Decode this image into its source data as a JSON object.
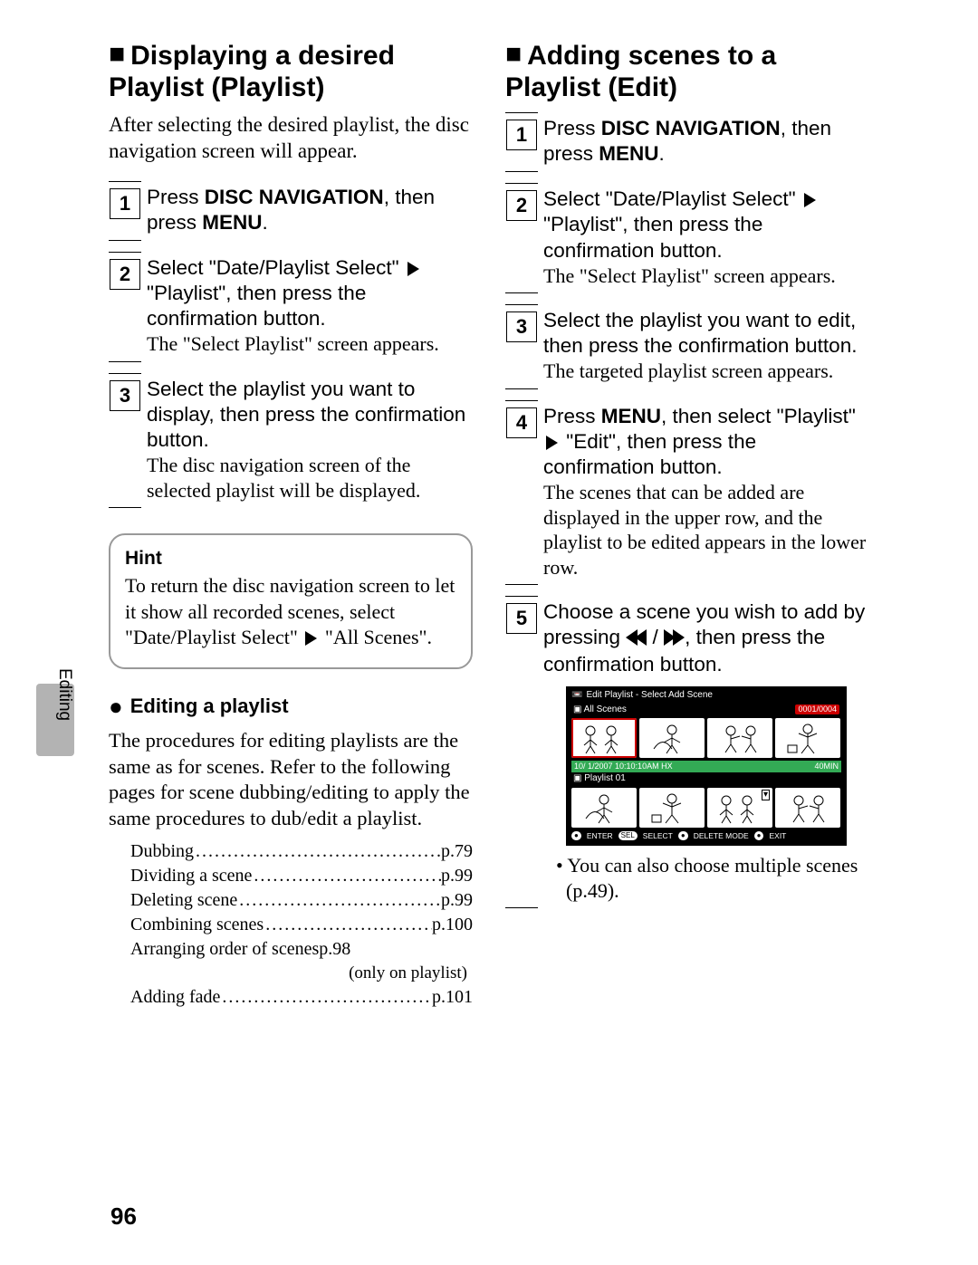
{
  "page_number": "96",
  "side_label": "Editing",
  "left": {
    "heading": "Displaying a desired Playlist (Playlist)",
    "intro": "After selecting the desired playlist, the disc navigation screen will appear.",
    "steps": [
      {
        "num": "1",
        "lines": [
          {
            "t": "Press ",
            "b": false,
            "sans": true
          },
          {
            "t": "DISC NAVIGATION",
            "b": true,
            "sans": true
          },
          {
            "t": ", then press ",
            "b": false,
            "sans": true
          },
          {
            "t": "MENU",
            "b": true,
            "sans": true
          },
          {
            "t": ".",
            "b": false,
            "sans": true
          }
        ]
      },
      {
        "num": "2",
        "lines": [
          {
            "t": "Select \"Date/Playlist Select\" ",
            "sans": true
          },
          {
            "tri": true
          },
          {
            "t": " \"Playlist\", then press the confirmation button.",
            "sans": true
          },
          {
            "br": true
          },
          {
            "t": "The \"Select Playlist\" screen appears.",
            "serif": true
          }
        ]
      },
      {
        "num": "3",
        "lines": [
          {
            "t": "Select the playlist you want to display, then press the confirmation button.",
            "sans": true
          },
          {
            "br": true
          },
          {
            "t": "The disc navigation screen of the selected playlist will be displayed.",
            "serif": true
          }
        ]
      }
    ],
    "hint_title": "Hint",
    "hint_body_a": "To return the disc navigation screen to let it show all recorded scenes, select \"Date/Playlist Select\" ",
    "hint_body_b": " \"All Scenes\".",
    "sub_heading": "Editing a playlist",
    "sub_body": "The procedures for editing playlists are the same as for scenes. Refer to the following pages for scene dubbing/editing to apply the same procedures to dub/edit a playlist.",
    "refs": [
      {
        "label": "Dubbing",
        "page": "p.79"
      },
      {
        "label": "Dividing a scene",
        "page": "p.99"
      },
      {
        "label": "Deleting scene",
        "page": "p.99"
      },
      {
        "label": "Combining scenes",
        "page": "p.100"
      },
      {
        "label": "Arranging order of scenes",
        "page": "p.98",
        "nodots": true
      },
      {
        "note": "(only on playlist)"
      },
      {
        "label": "Adding fade",
        "page": "p.101"
      }
    ]
  },
  "right": {
    "heading": "Adding scenes to a Playlist (Edit)",
    "steps": [
      {
        "num": "1",
        "lines": [
          {
            "t": "Press ",
            "sans": true
          },
          {
            "t": "DISC NAVIGATION",
            "b": true,
            "sans": true
          },
          {
            "t": ", then press ",
            "sans": true
          },
          {
            "t": "MENU",
            "b": true,
            "sans": true
          },
          {
            "t": ".",
            "sans": true
          }
        ]
      },
      {
        "num": "2",
        "lines": [
          {
            "t": "Select \"Date/Playlist Select\" ",
            "sans": true
          },
          {
            "tri": true
          },
          {
            "t": " \"Playlist\", then press the confirmation button.",
            "sans": true
          },
          {
            "br": true
          },
          {
            "t": "The \"Select Playlist\" screen appears.",
            "serif": true
          }
        ]
      },
      {
        "num": "3",
        "lines": [
          {
            "t": "Select the playlist you want to edit, then press the confirmation button.",
            "sans": true
          },
          {
            "br": true
          },
          {
            "t": "The targeted playlist screen appears.",
            "serif": true
          }
        ]
      },
      {
        "num": "4",
        "lines": [
          {
            "t": "Press ",
            "sans": true
          },
          {
            "t": "MENU",
            "b": true,
            "sans": true
          },
          {
            "t": ", then select \"Playlist\" ",
            "sans": true
          },
          {
            "tri": true
          },
          {
            "t": " \"Edit\", then press the confirmation button.",
            "sans": true
          },
          {
            "br": true
          },
          {
            "t": "The scenes that can be added are displayed in the upper row, and the playlist to be edited appears in the lower row.",
            "serif": true
          }
        ]
      },
      {
        "num": "5",
        "lines": [
          {
            "t": "Choose a scene you wish to add by pressing ",
            "sans": true
          },
          {
            "rw": true
          },
          {
            "t": " / ",
            "sans": true
          },
          {
            "ff": true
          },
          {
            "t": ", then press the confirmation button.",
            "sans": true
          }
        ],
        "lcd": true,
        "note": "You can also choose multiple scenes (p.49)."
      }
    ],
    "lcd": {
      "title": "Edit  Playlist - Select Add Scene",
      "upper_label": "All Scenes",
      "counter": "0001/0004",
      "date": "10/  1/2007 10:10:10AM  HX",
      "duration": "40MIN",
      "lower_label": "Playlist 01",
      "buttons": [
        "ENTER",
        "SELECT",
        "DELETE MODE",
        "EXIT"
      ]
    }
  }
}
